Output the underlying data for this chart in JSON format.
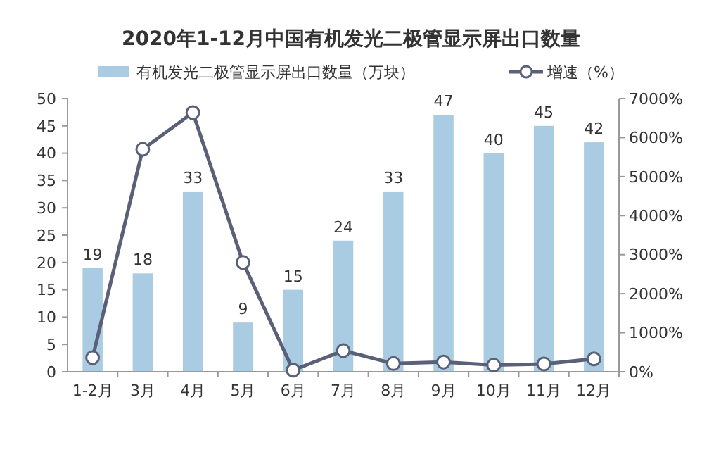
{
  "chart_data": {
    "type": "bar",
    "title": "2020年1-12月中国有机发光二极管显示屏出口数量",
    "categories": [
      "1-2月",
      "3月",
      "4月",
      "5月",
      "6月",
      "7月",
      "8月",
      "9月",
      "10月",
      "11月",
      "12月"
    ],
    "series": [
      {
        "name": "有机发光二极管显示屏出口数量（万块）",
        "color": "#a9cce3",
        "values": [
          19,
          18,
          33,
          9,
          15,
          24,
          33,
          47,
          40,
          45,
          42
        ],
        "value_labels": [
          "19",
          "18",
          "33",
          "9",
          "15",
          "24",
          "33",
          "47",
          "40",
          "45",
          "42"
        ]
      },
      {
        "name": "增速（%）",
        "type": "line",
        "axis": "y2",
        "color": "#5b6079",
        "values": [
          360,
          5700,
          6640,
          2800,
          40,
          540,
          210,
          250,
          170,
          200,
          330
        ]
      }
    ],
    "marker": "circle",
    "legend": "top",
    "grid": false,
    "ylim": [
      0,
      50
    ],
    "yticks": [
      0,
      5,
      10,
      15,
      20,
      25,
      30,
      35,
      40,
      45,
      50
    ],
    "y2lim": [
      0,
      7000
    ],
    "y2ticks": [
      {
        "value": 0,
        "label": "0%"
      },
      {
        "value": 1000,
        "label": "1000%"
      },
      {
        "value": 2000,
        "label": "2000%"
      },
      {
        "value": 3000,
        "label": "3000%"
      },
      {
        "value": 4000,
        "label": "4000%"
      },
      {
        "value": 5000,
        "label": "5000%"
      },
      {
        "value": 6000,
        "label": "6000%"
      },
      {
        "value": 7000,
        "label": "7000%"
      }
    ]
  }
}
